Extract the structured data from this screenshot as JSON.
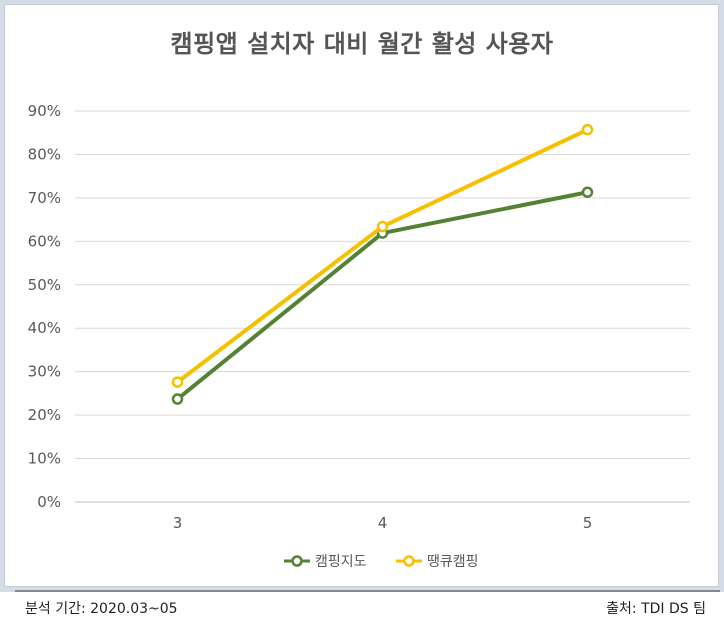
{
  "chart_data": {
    "type": "line",
    "title": "캠핑앱 설치자 대비 월간 활성 사용자",
    "categories": [
      "3",
      "4",
      "5"
    ],
    "series": [
      {
        "name": "캠핑지도",
        "values": [
          23.7,
          61.9,
          71.3
        ],
        "color": "#548235"
      },
      {
        "name": "땡큐캠핑",
        "values": [
          27.6,
          63.4,
          85.7
        ],
        "color": "#f5c000"
      }
    ],
    "ylim": [
      0,
      90
    ],
    "yticks": [
      "0%",
      "10%",
      "20%",
      "30%",
      "40%",
      "50%",
      "60%",
      "70%",
      "80%",
      "90%"
    ],
    "grid": true,
    "legend": "bottom"
  },
  "footer": {
    "left": "분석 기간: 2020.03~05",
    "right": "출처: TDI DS 팀"
  }
}
